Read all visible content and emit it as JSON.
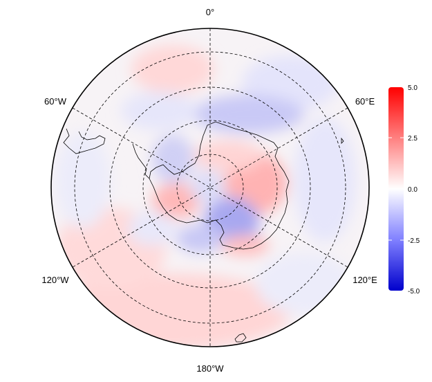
{
  "map": {
    "projection": "south-polar-stereographic",
    "longitude_labels": {
      "top": "0°",
      "upper_left": "60°W",
      "upper_right": "60°E",
      "lower_left": "120°W",
      "lower_right": "120°E",
      "bottom": "180°W"
    },
    "graticule_style": "dashed"
  },
  "colorbar": {
    "ticks": [
      "5.0",
      "2.5",
      "0.0",
      "-2.5",
      "-5.0"
    ],
    "min": -5.0,
    "max": 5.0,
    "colors": {
      "max": "#ff0000",
      "mid": "#ffffff",
      "min": "#0000cc"
    }
  }
}
